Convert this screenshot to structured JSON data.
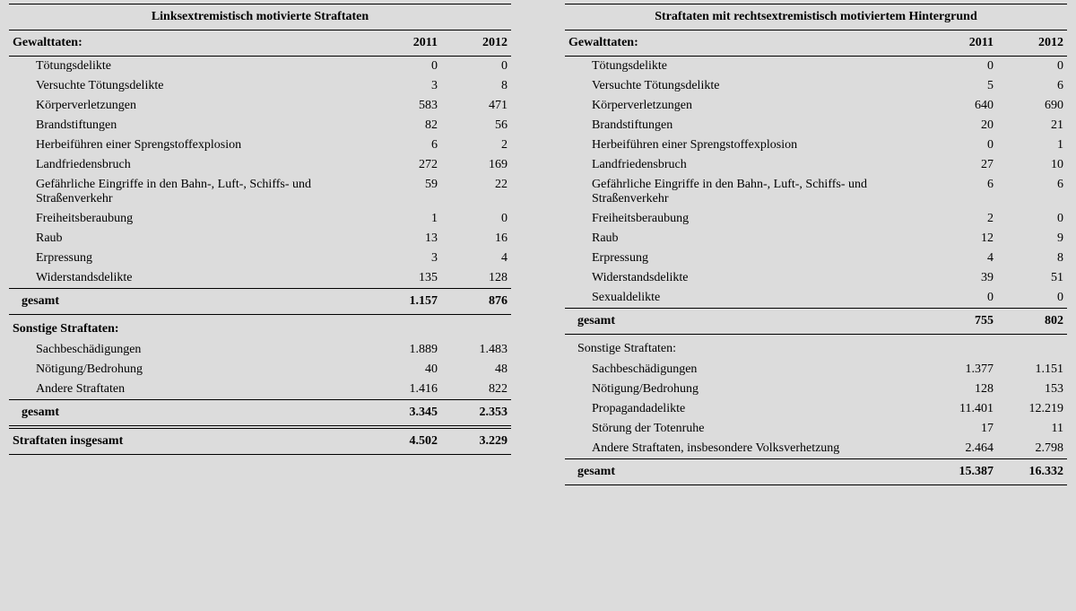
{
  "left": {
    "title": "Linksextremistisch motivierte Straftaten",
    "col_header": "Gewalttaten:",
    "year1": "2011",
    "year2": "2012",
    "violent_rows": [
      {
        "label": "Tötungsdelikte",
        "v1": "0",
        "v2": "0"
      },
      {
        "label": "Versuchte Tötungsdelikte",
        "v1": "3",
        "v2": "8"
      },
      {
        "label": "Körperverletzungen",
        "v1": "583",
        "v2": "471"
      },
      {
        "label": "Brandstiftungen",
        "v1": "82",
        "v2": "56"
      },
      {
        "label": "Herbeiführen einer Sprengstoffexplosion",
        "v1": "6",
        "v2": "2"
      },
      {
        "label": "Landfriedensbruch",
        "v1": "272",
        "v2": "169"
      },
      {
        "label": "Gefährliche Eingriffe in den Bahn-, Luft-, Schiffs- und Straßenverkehr",
        "v1": "59",
        "v2": "22"
      },
      {
        "label": "Freiheitsberaubung",
        "v1": "1",
        "v2": "0"
      },
      {
        "label": "Raub",
        "v1": "13",
        "v2": "16"
      },
      {
        "label": "Erpressung",
        "v1": "3",
        "v2": "4"
      },
      {
        "label": "Widerstandsdelikte",
        "v1": "135",
        "v2": "128"
      }
    ],
    "violent_sum_label": "gesamt",
    "violent_sum_v1": "1.157",
    "violent_sum_v2": "876",
    "other_header": "Sonstige Straftaten:",
    "other_rows": [
      {
        "label": "Sachbeschädigungen",
        "v1": "1.889",
        "v2": "1.483"
      },
      {
        "label": "Nötigung/Bedrohung",
        "v1": "40",
        "v2": "48"
      },
      {
        "label": "Andere Straftaten",
        "v1": "1.416",
        "v2": "822"
      }
    ],
    "other_sum_label": "gesamt",
    "other_sum_v1": "3.345",
    "other_sum_v2": "2.353",
    "grand_label": "Straftaten insgesamt",
    "grand_v1": "4.502",
    "grand_v2": "3.229"
  },
  "right": {
    "title": "Straftaten mit rechtsextremistisch motiviertem Hintergrund",
    "col_header": "Gewalttaten:",
    "year1": "2011",
    "year2": "2012",
    "violent_rows": [
      {
        "label": "Tötungsdelikte",
        "v1": "0",
        "v2": "0"
      },
      {
        "label": "Versuchte Tötungsdelikte",
        "v1": "5",
        "v2": "6"
      },
      {
        "label": "Körperverletzungen",
        "v1": "640",
        "v2": "690"
      },
      {
        "label": "Brandstiftungen",
        "v1": "20",
        "v2": "21"
      },
      {
        "label": "Herbeiführen einer Sprengstoffexplosion",
        "v1": "0",
        "v2": "1"
      },
      {
        "label": "Landfriedensbruch",
        "v1": "27",
        "v2": "10"
      },
      {
        "label": "Gefährliche Eingriffe in den Bahn-, Luft-, Schiffs- und Straßenverkehr",
        "v1": "6",
        "v2": "6"
      },
      {
        "label": "Freiheitsberaubung",
        "v1": "2",
        "v2": "0"
      },
      {
        "label": "Raub",
        "v1": "12",
        "v2": "9"
      },
      {
        "label": "Erpressung",
        "v1": "4",
        "v2": "8"
      },
      {
        "label": "Widerstandsdelikte",
        "v1": "39",
        "v2": "51"
      },
      {
        "label": "Sexualdelikte",
        "v1": "0",
        "v2": "0"
      }
    ],
    "violent_sum_label": "gesamt",
    "violent_sum_v1": "755",
    "violent_sum_v2": "802",
    "other_header": "Sonstige Straftaten:",
    "other_rows": [
      {
        "label": "Sachbeschädigungen",
        "v1": "1.377",
        "v2": "1.151"
      },
      {
        "label": "Nötigung/Bedrohung",
        "v1": "128",
        "v2": "153"
      },
      {
        "label": "Propagandadelikte",
        "v1": "11.401",
        "v2": "12.219"
      },
      {
        "label": "Störung der Totenruhe",
        "v1": "17",
        "v2": "11"
      },
      {
        "label": "Andere Straftaten, insbesondere Volksverhetzung",
        "v1": "2.464",
        "v2": "2.798"
      }
    ],
    "other_sum_label": "gesamt",
    "other_sum_v1": "15.387",
    "other_sum_v2": "16.332"
  },
  "style": {
    "background": "#dcdcdc",
    "text_color": "#000000",
    "border_color": "#000000",
    "font_family": "Georgia, Times New Roman, serif",
    "font_size_pt": 11
  }
}
